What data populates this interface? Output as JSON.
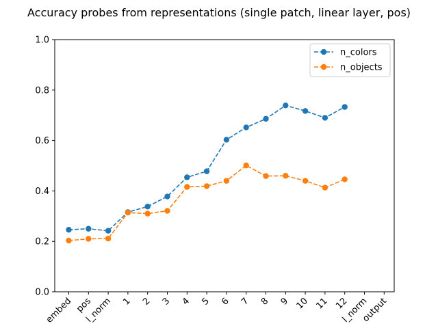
{
  "chart_data": {
    "type": "line",
    "title": "Accuracy probes from representations (single patch, linear layer, pos)",
    "xlabel": "",
    "ylabel": "",
    "categories": [
      "embed",
      "pos",
      "l_norm",
      "1",
      "2",
      "3",
      "4",
      "5",
      "6",
      "7",
      "8",
      "9",
      "10",
      "11",
      "12",
      "l_norm",
      "output"
    ],
    "ylim": [
      0.0,
      1.0
    ],
    "yticks": [
      "0.0",
      "0.2",
      "0.4",
      "0.6",
      "0.8",
      "1.0"
    ],
    "grid": false,
    "legend_position": "top-right",
    "series": [
      {
        "name": "n_colors",
        "color": "#1f77b4",
        "values": [
          0.246,
          0.25,
          0.242,
          0.316,
          0.338,
          0.378,
          0.454,
          0.478,
          0.603,
          0.652,
          0.686,
          0.739,
          0.717,
          0.69,
          0.733,
          null,
          null
        ]
      },
      {
        "name": "n_objects",
        "color": "#ff7f0e",
        "values": [
          0.203,
          0.21,
          0.211,
          0.314,
          0.31,
          0.321,
          0.416,
          0.419,
          0.44,
          0.501,
          0.459,
          0.46,
          0.44,
          0.413,
          0.446,
          null,
          null
        ]
      }
    ]
  }
}
